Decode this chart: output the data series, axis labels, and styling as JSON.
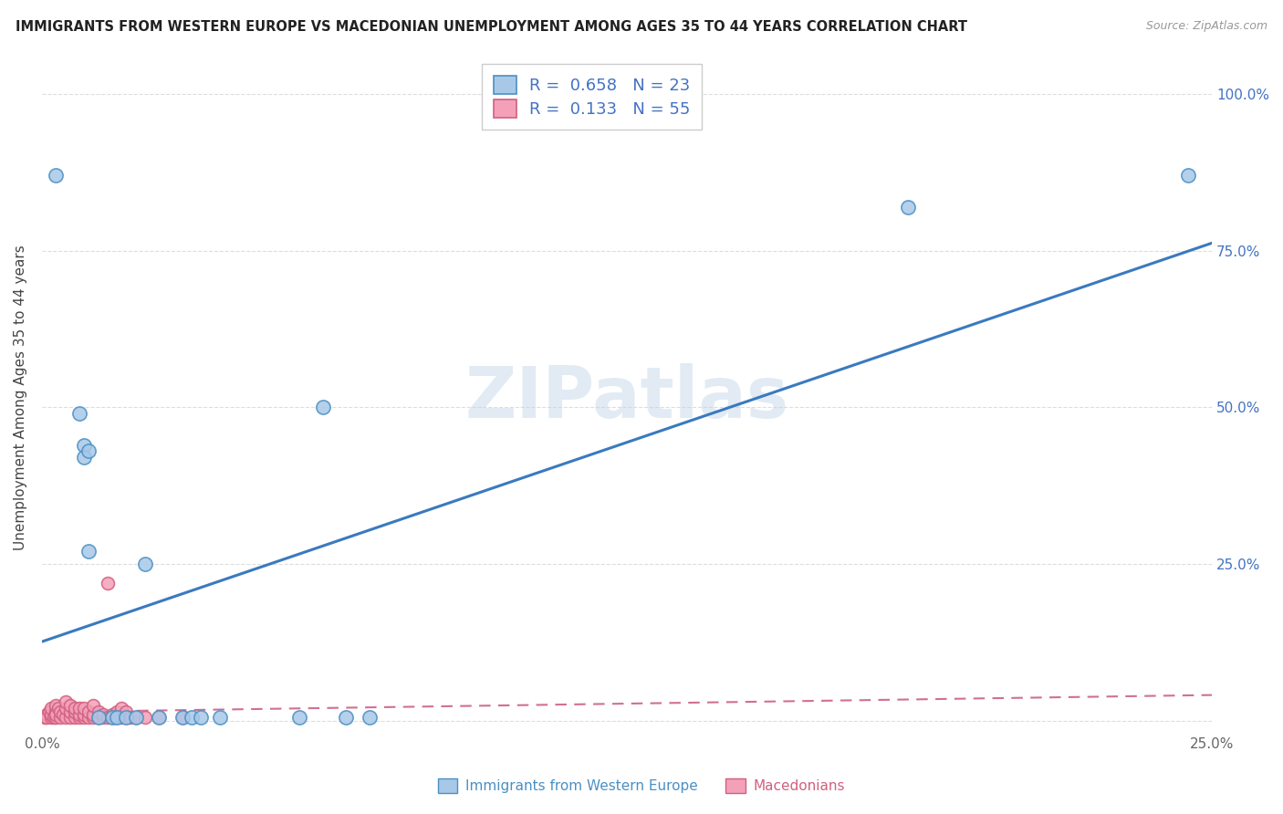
{
  "title": "IMMIGRANTS FROM WESTERN EUROPE VS MACEDONIAN UNEMPLOYMENT AMONG AGES 35 TO 44 YEARS CORRELATION CHART",
  "source": "Source: ZipAtlas.com",
  "ylabel": "Unemployment Among Ages 35 to 44 years",
  "xlim": [
    0.0,
    0.25
  ],
  "ylim": [
    -0.02,
    1.05
  ],
  "blue_scatter": [
    [
      0.003,
      0.87
    ],
    [
      0.008,
      0.49
    ],
    [
      0.009,
      0.44
    ],
    [
      0.009,
      0.42
    ],
    [
      0.01,
      0.43
    ],
    [
      0.01,
      0.27
    ],
    [
      0.012,
      0.005
    ],
    [
      0.015,
      0.005
    ],
    [
      0.016,
      0.005
    ],
    [
      0.018,
      0.005
    ],
    [
      0.02,
      0.005
    ],
    [
      0.022,
      0.25
    ],
    [
      0.025,
      0.005
    ],
    [
      0.03,
      0.005
    ],
    [
      0.032,
      0.005
    ],
    [
      0.034,
      0.005
    ],
    [
      0.038,
      0.005
    ],
    [
      0.055,
      0.005
    ],
    [
      0.06,
      0.5
    ],
    [
      0.065,
      0.005
    ],
    [
      0.07,
      0.005
    ],
    [
      0.185,
      0.82
    ],
    [
      0.245,
      0.87
    ]
  ],
  "pink_scatter": [
    [
      0.0005,
      0.005
    ],
    [
      0.001,
      0.01
    ],
    [
      0.001,
      0.005
    ],
    [
      0.0015,
      0.015
    ],
    [
      0.002,
      0.005
    ],
    [
      0.002,
      0.01
    ],
    [
      0.002,
      0.02
    ],
    [
      0.0025,
      0.005
    ],
    [
      0.003,
      0.005
    ],
    [
      0.003,
      0.015
    ],
    [
      0.003,
      0.025
    ],
    [
      0.003,
      0.01
    ],
    [
      0.0035,
      0.02
    ],
    [
      0.004,
      0.005
    ],
    [
      0.004,
      0.015
    ],
    [
      0.0045,
      0.01
    ],
    [
      0.005,
      0.005
    ],
    [
      0.005,
      0.02
    ],
    [
      0.005,
      0.03
    ],
    [
      0.006,
      0.005
    ],
    [
      0.006,
      0.015
    ],
    [
      0.006,
      0.025
    ],
    [
      0.007,
      0.005
    ],
    [
      0.007,
      0.015
    ],
    [
      0.007,
      0.02
    ],
    [
      0.008,
      0.005
    ],
    [
      0.008,
      0.01
    ],
    [
      0.008,
      0.02
    ],
    [
      0.009,
      0.005
    ],
    [
      0.009,
      0.01
    ],
    [
      0.009,
      0.02
    ],
    [
      0.01,
      0.005
    ],
    [
      0.01,
      0.015
    ],
    [
      0.011,
      0.005
    ],
    [
      0.011,
      0.01
    ],
    [
      0.011,
      0.025
    ],
    [
      0.012,
      0.005
    ],
    [
      0.012,
      0.015
    ],
    [
      0.013,
      0.005
    ],
    [
      0.013,
      0.01
    ],
    [
      0.014,
      0.005
    ],
    [
      0.014,
      0.22
    ],
    [
      0.015,
      0.005
    ],
    [
      0.015,
      0.01
    ],
    [
      0.016,
      0.005
    ],
    [
      0.016,
      0.015
    ],
    [
      0.017,
      0.005
    ],
    [
      0.017,
      0.02
    ],
    [
      0.018,
      0.005
    ],
    [
      0.018,
      0.015
    ],
    [
      0.019,
      0.005
    ],
    [
      0.02,
      0.005
    ],
    [
      0.022,
      0.005
    ],
    [
      0.025,
      0.005
    ],
    [
      0.03,
      0.005
    ]
  ],
  "blue_R": 0.658,
  "blue_N": 23,
  "pink_R": 0.133,
  "pink_N": 55,
  "blue_color": "#a8c8e8",
  "pink_color": "#f4a0b8",
  "blue_edge_color": "#4a90c4",
  "pink_edge_color": "#d06080",
  "blue_line_color": "#3a7abf",
  "pink_line_color": "#d07090",
  "watermark": "ZIPatlas",
  "background_color": "#ffffff",
  "grid_color": "#dddddd",
  "ytick_color": "#4472c4",
  "xtick_color": "#666666"
}
